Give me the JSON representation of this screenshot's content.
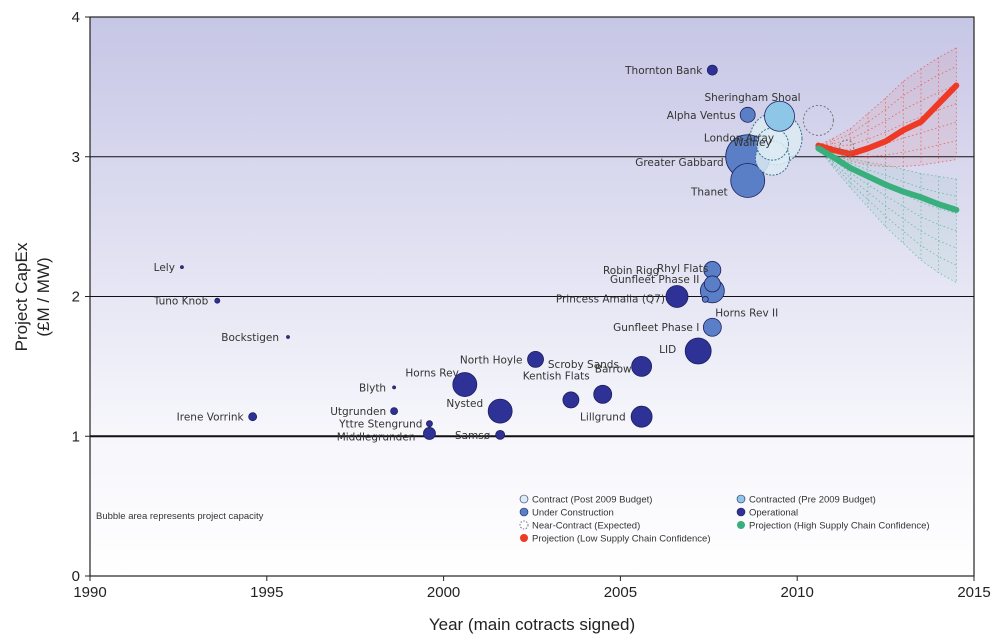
{
  "chart_data": {
    "type": "scatter",
    "title": "",
    "xlabel": "Year (main cotracts signed)",
    "ylabel": [
      "Project CapEx",
      "(£M / MW)"
    ],
    "xlim": [
      1990,
      2015
    ],
    "ylim": [
      0,
      4
    ],
    "xticks": [
      "1990",
      "1995",
      "2000",
      "2005",
      "2010",
      "2015"
    ],
    "yticks": [
      "0",
      "1",
      "2",
      "3",
      "4"
    ],
    "grid": "horizontal",
    "note": "Bubble area represents project capacity",
    "colors": {
      "contract_post2009": "#dcebf3",
      "contracted_pre2009": "#8ec6e8",
      "under_construction": "#5a7fc6",
      "operational": "#2e3196",
      "near_contract": "#888888",
      "projection_low": "#ee3a24",
      "projection_high": "#3aaf7e"
    },
    "legend": [
      {
        "key": "contract_post2009",
        "label": "Contract (Post 2009 Budget)"
      },
      {
        "key": "contracted_pre2009",
        "label": "Contracted (Pre 2009 Budget)"
      },
      {
        "key": "under_construction",
        "label": "Under Construction"
      },
      {
        "key": "operational",
        "label": "Operational"
      },
      {
        "key": "near_contract",
        "label": "Near-Contract (Expected)"
      },
      {
        "key": "projection_high",
        "label": "Projection (High Supply Chain Confidence)"
      },
      {
        "key": "projection_low",
        "label": "Projection (Low Supply Chain Confidence)"
      }
    ],
    "projects": [
      {
        "name": "Lely",
        "x": 1992.6,
        "y": 2.21,
        "r": 1.5,
        "status": "operational"
      },
      {
        "name": "Tuno Knob",
        "x": 1993.6,
        "y": 1.97,
        "r": 2.5,
        "status": "operational"
      },
      {
        "name": "Bockstigen",
        "x": 1995.6,
        "y": 1.71,
        "r": 1.5,
        "status": "operational"
      },
      {
        "name": "Irene Vorrink",
        "x": 1994.6,
        "y": 1.14,
        "r": 4,
        "status": "operational"
      },
      {
        "name": "Blyth",
        "x": 1998.6,
        "y": 1.35,
        "r": 1.5,
        "status": "operational"
      },
      {
        "name": "Utgrunden",
        "x": 1998.6,
        "y": 1.18,
        "r": 3.5,
        "status": "operational"
      },
      {
        "name": "Yttre Stengrund",
        "x": 1999.6,
        "y": 1.09,
        "r": 3,
        "status": "operational"
      },
      {
        "name": "Middlegrunden",
        "x": 1999.6,
        "y": 1.02,
        "r": 6,
        "status": "operational"
      },
      {
        "name": "Horns Rev",
        "x": 2000.6,
        "y": 1.37,
        "r": 12,
        "status": "operational"
      },
      {
        "name": "Nysted",
        "x": 2001.6,
        "y": 1.18,
        "r": 12,
        "status": "operational"
      },
      {
        "name": "Samsø",
        "x": 2001.6,
        "y": 1.01,
        "r": 4.5,
        "status": "operational"
      },
      {
        "name": "North Hoyle",
        "x": 2002.6,
        "y": 1.55,
        "r": 8,
        "status": "operational"
      },
      {
        "name": "Scroby Sands",
        "x": 2003.6,
        "y": 1.26,
        "r": 8,
        "status": "operational"
      },
      {
        "name": "Kentish Flats",
        "x": 2004.5,
        "y": 1.3,
        "r": 9,
        "status": "operational"
      },
      {
        "name": "Barrow",
        "x": 2005.6,
        "y": 1.5,
        "r": 10,
        "status": "operational"
      },
      {
        "name": "Lillgrund",
        "x": 2005.6,
        "y": 1.14,
        "r": 10.5,
        "status": "operational"
      },
      {
        "name": "Princess Amalia (Q7)",
        "x": 2006.6,
        "y": 2.0,
        "r": 11,
        "status": "operational"
      },
      {
        "name": "LID",
        "x": 2007.2,
        "y": 1.61,
        "r": 13,
        "status": "operational"
      },
      {
        "name": "Robin Rigg",
        "x": 2007.6,
        "y": 2.19,
        "r": 8.5,
        "status": "under_construction"
      },
      {
        "name": "Rhyl Flats",
        "x": 2007.6,
        "y": 2.09,
        "r": 8,
        "status": "under_construction"
      },
      {
        "name": "Gunfleet Phase II",
        "x": 2007.6,
        "y": 2.04,
        "r": 12,
        "status": "under_construction"
      },
      {
        "name": "Horns Rev II",
        "x": 2007.4,
        "y": 1.98,
        "r": 3,
        "status": "under_construction"
      },
      {
        "name": "Gunfleet Phase I",
        "x": 2007.6,
        "y": 1.78,
        "r": 9,
        "status": "under_construction"
      },
      {
        "name": "Thornton Bank",
        "x": 2007.6,
        "y": 3.62,
        "r": 5,
        "status": "operational"
      },
      {
        "name": "Alpha Ventus",
        "x": 2008.6,
        "y": 3.3,
        "r": 7.5,
        "status": "under_construction"
      },
      {
        "name": "Thanet",
        "x": 2008.6,
        "y": 2.83,
        "r": 17,
        "status": "under_construction"
      },
      {
        "name": "Greater Gabbard",
        "x": 2008.6,
        "y": 3.0,
        "r": 22,
        "status": "under_construction"
      },
      {
        "name": "Walney",
        "x": 2009.3,
        "y": 3.09,
        "r": 16,
        "status": "contract_post2009"
      },
      {
        "name": "London Array",
        "x": 2009.4,
        "y": 3.13,
        "r": 26,
        "status": "contract_post2009"
      },
      {
        "name": "Sheringham Shoal",
        "x": 2009.5,
        "y": 3.29,
        "r": 15,
        "status": "contracted_pre2009"
      },
      {
        "name": "",
        "x": 2009.3,
        "y": 2.99,
        "r": 17,
        "status": "contract_post2009"
      },
      {
        "name": "",
        "x": 2010.6,
        "y": 3.26,
        "r": 15,
        "status": "near_contract"
      },
      {
        "name": "",
        "x": 2011.4,
        "y": 3.07,
        "r": 7,
        "status": "near_contract"
      }
    ],
    "series": [
      {
        "key": "projection_low",
        "x": [
          2010.6,
          2011.0,
          2011.5,
          2012.0,
          2012.5,
          2013.0,
          2013.5,
          2014.0,
          2014.5
        ],
        "y": [
          3.08,
          3.05,
          3.02,
          3.06,
          3.11,
          3.19,
          3.25,
          3.38,
          3.51
        ],
        "band_upper": [
          3.08,
          3.13,
          3.2,
          3.31,
          3.42,
          3.54,
          3.63,
          3.71,
          3.78
        ],
        "band_lower": [
          3.08,
          3.02,
          2.97,
          2.94,
          2.93,
          2.93,
          2.94,
          2.96,
          2.98
        ]
      },
      {
        "key": "projection_high",
        "x": [
          2010.6,
          2011.0,
          2011.5,
          2012.0,
          2012.5,
          2013.0,
          2013.5,
          2014.0,
          2014.5
        ],
        "y": [
          3.06,
          3.0,
          2.92,
          2.86,
          2.8,
          2.75,
          2.71,
          2.66,
          2.62
        ],
        "band_upper": [
          3.06,
          3.03,
          2.99,
          2.96,
          2.94,
          2.91,
          2.88,
          2.86,
          2.84
        ],
        "band_lower": [
          3.06,
          2.93,
          2.78,
          2.64,
          2.5,
          2.38,
          2.26,
          2.17,
          2.1
        ]
      }
    ]
  }
}
